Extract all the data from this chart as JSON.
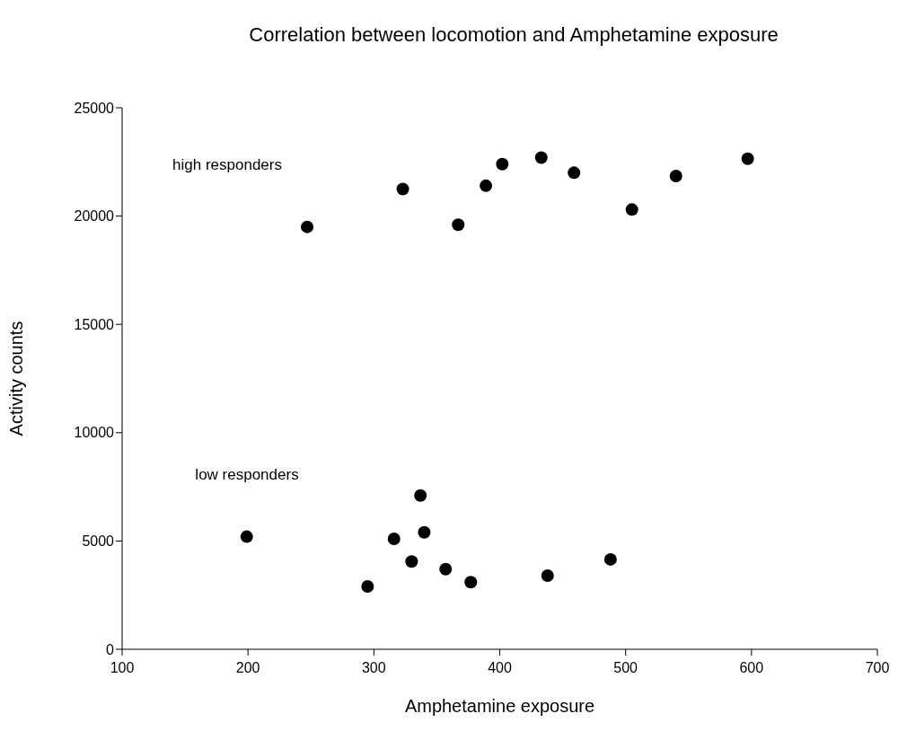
{
  "chart_data": {
    "type": "scatter",
    "title": "Correlation between locomotion and Amphetamine exposure",
    "xlabel": "Amphetamine exposure",
    "ylabel": "Activity counts",
    "series": [
      {
        "color": "#000000",
        "x": [
          247,
          323,
          367,
          389,
          402,
          433,
          459,
          505,
          540,
          597
        ],
        "values": [
          19500,
          21250,
          19600,
          21400,
          22400,
          22700,
          22000,
          20300,
          21850,
          22650
        ]
      },
      {
        "color": "#000000",
        "x": [
          199,
          295,
          316,
          330,
          337,
          340,
          357,
          377,
          438,
          488
        ],
        "values": [
          5200,
          2900,
          5100,
          4050,
          7100,
          5400,
          3700,
          3100,
          3400,
          4150
        ]
      }
    ],
    "annotations": [
      "high responders",
      "low responders"
    ],
    "xlim": [
      100,
      700
    ],
    "xticks": [
      100,
      200,
      300,
      400,
      500,
      600,
      700
    ],
    "ylim": [
      0,
      25000
    ],
    "yticks": [
      0,
      5000,
      10000,
      15000,
      20000,
      25000
    ],
    "grid": false,
    "legend": false,
    "marker": "circle"
  }
}
